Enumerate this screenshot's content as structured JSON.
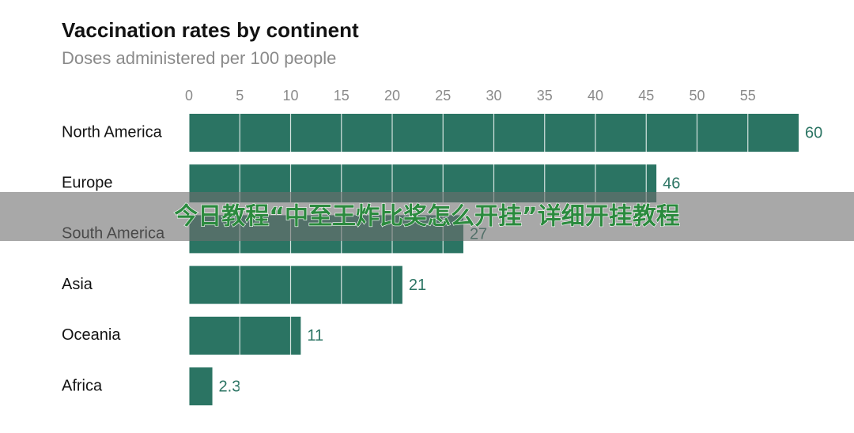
{
  "chart_data": {
    "type": "bar",
    "orientation": "horizontal",
    "title": "Vaccination rates by continent",
    "subtitle": "Doses administered per 100 people",
    "categories": [
      "North America",
      "Europe",
      "South America",
      "Asia",
      "Oceania",
      "Africa"
    ],
    "values": [
      60,
      46,
      27,
      21,
      11,
      2.3
    ],
    "color": "#2b7463",
    "xlim": [
      0,
      60
    ],
    "xticks": [
      0,
      5,
      10,
      15,
      20,
      25,
      30,
      35,
      40,
      45,
      50,
      55
    ],
    "grid": true
  },
  "banner": {
    "text": "今日教程“中至王炸比奖怎么开挂”详细开挂教程"
  }
}
